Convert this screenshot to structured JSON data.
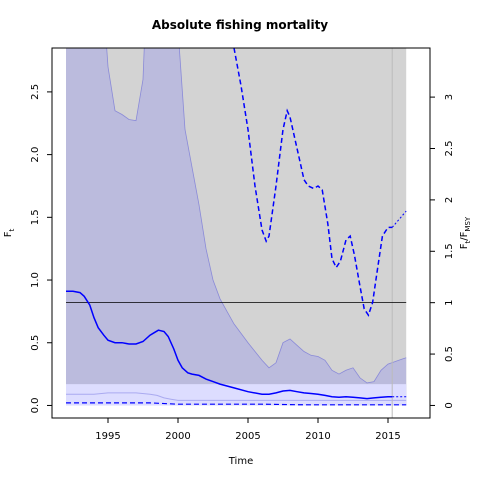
{
  "chart_data": {
    "type": "line",
    "title": "Absolute fishing mortality",
    "xlabel": "Time",
    "ylabel_left": "F",
    "ylabel_left_sub": "t",
    "ylabel_right_main": "F",
    "ylabel_right_sub1": "t",
    "ylabel_right_mid": "/F",
    "ylabel_right_sub2": "MSY",
    "xlim": [
      1991,
      2018
    ],
    "ylim_left": [
      -0.1,
      2.85
    ],
    "ylim_right_ratio": 0.8195,
    "xticks": [
      1995,
      2000,
      2005,
      2010,
      2015
    ],
    "xtick_labels": [
      "1995",
      "2000",
      "2005",
      "2010",
      "2015"
    ],
    "yticks_left": [
      0.0,
      0.5,
      1.0,
      1.5,
      2.0,
      2.5
    ],
    "ytick_labels_left": [
      "0.0",
      "0.5",
      "1.0",
      "1.5",
      "2.0",
      "2.5"
    ],
    "yticks_right": [
      0,
      0.5,
      1,
      1.5,
      2,
      2.5,
      3
    ],
    "ytick_labels_right": [
      "0",
      "0.5",
      "1",
      "1.5",
      "2",
      "2.5",
      "3"
    ],
    "fmsy_line": 0.82,
    "last_data_year": 2015.3,
    "prediction_end": 2016.3,
    "colors": {
      "ci_gray": "#d3d3d3",
      "ci_upper_band": "#bbbbdd",
      "ci_upper_edge": "#8a8ad8",
      "ci_lower_band": "#ddddff",
      "ci_lower_edge": "#aaaaf0",
      "main_line": "#0000ff",
      "fmsy_line": "#000000",
      "vline": "#bbbbbb"
    },
    "series": [
      {
        "role": "upper_ci",
        "x": [
          1992,
          1993,
          1994,
          1994.5,
          1995,
          1995.5,
          1996,
          1996.5,
          1997,
          1997.5,
          1998,
          1998.5,
          1999,
          2000,
          2000.5,
          2001,
          2001.5,
          2002,
          2002.5,
          2003,
          2003.5,
          2004,
          2005,
          2006,
          2006.5,
          2007,
          2007.5,
          2008,
          2008.5,
          2009,
          2009.5,
          2010,
          2010.5,
          2011,
          2011.5,
          2012,
          2012.5,
          2013,
          2013.5,
          2014,
          2014.5,
          2015,
          2015.5,
          2016,
          2016.3
        ],
        "y": [
          4.0,
          4.0,
          4.0,
          3.5,
          2.7,
          2.35,
          2.32,
          2.28,
          2.27,
          2.6,
          4.0,
          4.0,
          4.0,
          3.0,
          2.2,
          1.9,
          1.6,
          1.25,
          1.0,
          0.85,
          0.75,
          0.65,
          0.5,
          0.36,
          0.3,
          0.34,
          0.5,
          0.53,
          0.48,
          0.43,
          0.4,
          0.39,
          0.36,
          0.28,
          0.25,
          0.28,
          0.3,
          0.22,
          0.18,
          0.19,
          0.28,
          0.33,
          0.35,
          0.37,
          0.38
        ]
      },
      {
        "role": "lower_ci",
        "x": [
          1992,
          1993,
          1994,
          1995,
          1996,
          1997,
          1998,
          1998.5,
          1999,
          1999.5,
          2000,
          2001,
          2002,
          2003,
          2004,
          2005,
          2006,
          2007,
          2008,
          2009,
          2010,
          2011,
          2012,
          2013,
          2014,
          2015,
          2016,
          2016.3
        ],
        "y": [
          0.09,
          0.09,
          0.09,
          0.1,
          0.1,
          0.1,
          0.09,
          0.08,
          0.06,
          0.05,
          0.04,
          0.04,
          0.04,
          0.04,
          0.04,
          0.04,
          0.04,
          0.04,
          0.04,
          0.04,
          0.04,
          0.04,
          0.04,
          0.04,
          0.04,
          0.04,
          0.04,
          0.04
        ]
      },
      {
        "role": "estimate",
        "x": [
          1992,
          1992.5,
          1993,
          1993.3,
          1993.7,
          1994,
          1994.3,
          1994.7,
          1995,
          1995.5,
          1996,
          1996.5,
          1997,
          1997.5,
          1998,
          1998.3,
          1998.6,
          1999,
          1999.3,
          1999.7,
          2000,
          2000.3,
          2000.7,
          2001,
          2001.5,
          2002,
          2002.5,
          2003,
          2004,
          2005,
          2006,
          2006.5,
          2007,
          2007.5,
          2008,
          2008.5,
          2009,
          2009.5,
          2010,
          2010.5,
          2011,
          2011.5,
          2012,
          2012.5,
          2013,
          2013.5,
          2014,
          2014.5,
          2015,
          2015.3
        ],
        "y": [
          0.91,
          0.91,
          0.9,
          0.87,
          0.8,
          0.7,
          0.62,
          0.56,
          0.52,
          0.5,
          0.5,
          0.49,
          0.49,
          0.51,
          0.56,
          0.58,
          0.6,
          0.59,
          0.55,
          0.45,
          0.36,
          0.3,
          0.26,
          0.25,
          0.24,
          0.21,
          0.19,
          0.17,
          0.14,
          0.11,
          0.09,
          0.09,
          0.1,
          0.115,
          0.12,
          0.11,
          0.1,
          0.095,
          0.09,
          0.08,
          0.07,
          0.065,
          0.07,
          0.065,
          0.06,
          0.055,
          0.06,
          0.065,
          0.07,
          0.07
        ]
      },
      {
        "role": "estimate_prediction",
        "x": [
          2015.3,
          2016.3
        ],
        "y": [
          0.07,
          0.07
        ]
      },
      {
        "role": "upper_ci_dashed",
        "x": [
          2004,
          2004.5,
          2005,
          2005.5,
          2006,
          2006.3,
          2006.5,
          2007,
          2007.5,
          2007.8,
          2008,
          2008.5,
          2009,
          2009.3,
          2009.7,
          2010,
          2010.3,
          2010.7,
          2011,
          2011.3,
          2011.6,
          2012,
          2012.3,
          2012.6,
          2013,
          2013.3,
          2013.6,
          2013.9,
          2014.2,
          2014.6,
          2015,
          2015.3
        ],
        "y": [
          2.85,
          2.55,
          2.2,
          1.75,
          1.4,
          1.31,
          1.35,
          1.75,
          2.2,
          2.35,
          2.3,
          2.05,
          1.8,
          1.75,
          1.73,
          1.75,
          1.72,
          1.45,
          1.17,
          1.1,
          1.15,
          1.32,
          1.35,
          1.2,
          0.95,
          0.77,
          0.72,
          0.82,
          1.05,
          1.35,
          1.42,
          1.42
        ]
      },
      {
        "role": "upper_ci_prediction",
        "x": [
          2015.3,
          2016.3
        ],
        "y": [
          1.42,
          1.55
        ]
      },
      {
        "role": "lower_ci_dashed",
        "x": [
          1992,
          1995,
          1998,
          2000,
          2003,
          2006,
          2009,
          2012,
          2015,
          2016.3
        ],
        "y": [
          0.02,
          0.02,
          0.02,
          0.01,
          0.01,
          0.01,
          0.005,
          0.005,
          0.005,
          0.005
        ]
      }
    ]
  }
}
